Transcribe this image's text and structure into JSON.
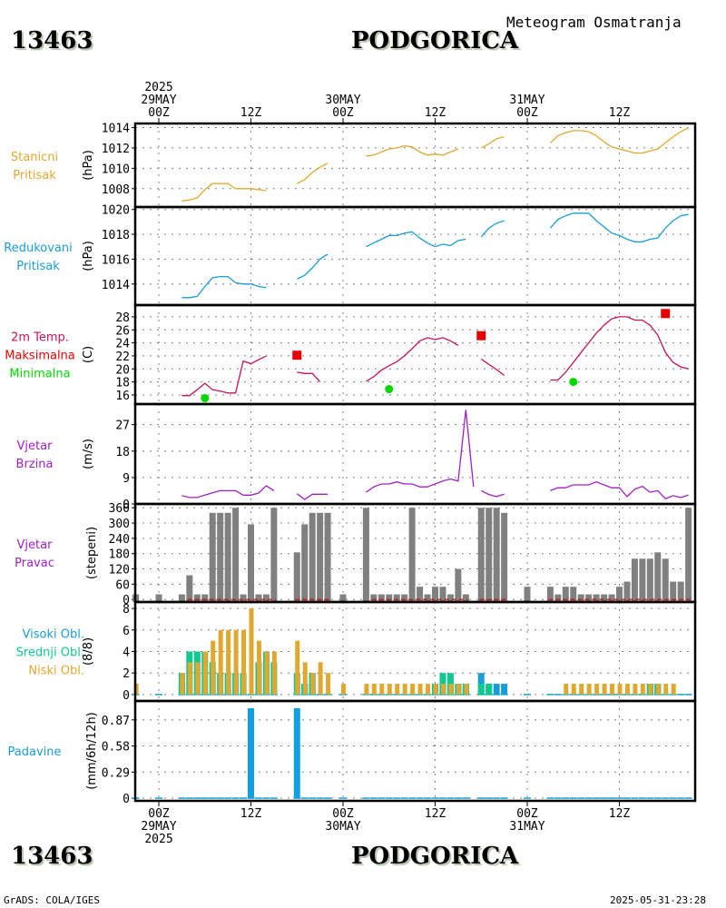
{
  "header": {
    "station_id": "13463",
    "station_name": "PODGORICA",
    "subtitle": "Meteogram Osmatranja"
  },
  "footer": {
    "station_id": "13463",
    "station_name": "PODGORICA",
    "credit": "GrADS: COLA/IGES",
    "timestamp": "2025-05-31-23:28"
  },
  "time_axis": {
    "top_labels": [
      {
        "h": 0,
        "lines": [
          "2025",
          "29MAY",
          "00Z"
        ]
      },
      {
        "h": 12,
        "lines": [
          "12Z"
        ]
      },
      {
        "h": 24,
        "lines": [
          "30MAY",
          "00Z"
        ]
      },
      {
        "h": 36,
        "lines": [
          "12Z"
        ]
      },
      {
        "h": 48,
        "lines": [
          "31MAY",
          "00Z"
        ]
      },
      {
        "h": 60,
        "lines": [
          "12Z"
        ]
      }
    ],
    "bottom_labels": [
      {
        "h": 0,
        "lines": [
          "00Z",
          "29MAY",
          "2025"
        ]
      },
      {
        "h": 12,
        "lines": [
          "12Z"
        ]
      },
      {
        "h": 24,
        "lines": [
          "00Z",
          "30MAY"
        ]
      },
      {
        "h": 36,
        "lines": [
          "12Z"
        ]
      },
      {
        "h": 48,
        "lines": [
          "00Z",
          "31MAY"
        ]
      },
      {
        "h": 60,
        "lines": [
          "12Z"
        ]
      }
    ],
    "range_hours": [
      -3,
      70
    ],
    "units": "hours since 2025-05-29 00Z"
  },
  "chart_data": [
    {
      "type": "line",
      "id": "station-pressure",
      "labels": [
        "Stanicni",
        "Pritisak"
      ],
      "label_color": "#e0a830",
      "ylabel": "(hPa)",
      "ylim": [
        1006.2,
        1014.4
      ],
      "yticks": [
        1008,
        1010,
        1012,
        1014
      ],
      "series": [
        {
          "name": "Stanicni Pritisak",
          "color": "#e0a830",
          "x": [
            3,
            4,
            5,
            6,
            7,
            8,
            9,
            10,
            11,
            12,
            13,
            14,
            15,
            null,
            18,
            19,
            20,
            21,
            22,
            null,
            27,
            28,
            29,
            30,
            31,
            32,
            33,
            34,
            35,
            36,
            37,
            38,
            39,
            40,
            null,
            42,
            43,
            44,
            45,
            null,
            51,
            52,
            53,
            54,
            55,
            56,
            57,
            58,
            59,
            60,
            61,
            62,
            63,
            64,
            65,
            66,
            67,
            68,
            69
          ],
          "y": [
            1006.8,
            1006.9,
            1007.1,
            1007.9,
            1008.5,
            1008.5,
            1008.5,
            1008.0,
            1008.0,
            1008.0,
            1007.9,
            1007.8,
            null,
            null,
            1008.5,
            1008.9,
            1009.6,
            1010.1,
            1010.5,
            null,
            1011.2,
            1011.3,
            1011.6,
            1011.9,
            1012.0,
            1012.2,
            1012.1,
            1011.6,
            1011.3,
            1011.4,
            1011.3,
            1011.6,
            1011.9,
            null,
            null,
            1012.0,
            1012.4,
            1012.9,
            1013.1,
            null,
            1012.5,
            1013.2,
            1013.5,
            1013.7,
            1013.7,
            1013.6,
            1013.2,
            1012.6,
            1012.1,
            1011.9,
            1011.7,
            1011.5,
            1011.5,
            1011.7,
            1011.9,
            1012.5,
            1013.1,
            1013.6,
            1014.0
          ]
        }
      ]
    },
    {
      "type": "line",
      "id": "reduced-pressure",
      "labels": [
        "Redukovani",
        "Pritisak"
      ],
      "label_color": "#1a9cd8",
      "ylabel": "(hPa)",
      "ylim": [
        1012.3,
        1020.2
      ],
      "yticks": [
        1014,
        1016,
        1018,
        1020
      ],
      "series": [
        {
          "name": "Redukovani Pritisak",
          "color": "#1a9cd8",
          "x": [
            3,
            4,
            5,
            6,
            7,
            8,
            9,
            10,
            11,
            12,
            13,
            14,
            15,
            null,
            18,
            19,
            20,
            21,
            22,
            null,
            27,
            28,
            29,
            30,
            31,
            32,
            33,
            34,
            35,
            36,
            37,
            38,
            39,
            40,
            null,
            42,
            43,
            44,
            45,
            null,
            51,
            52,
            53,
            54,
            55,
            56,
            57,
            58,
            59,
            60,
            61,
            62,
            63,
            64,
            65,
            66,
            67,
            68,
            69
          ],
          "y": [
            1012.9,
            1012.9,
            1013.0,
            1013.8,
            1014.5,
            1014.6,
            1014.6,
            1014.1,
            1014.0,
            1014.0,
            1013.8,
            1013.7,
            null,
            null,
            1014.4,
            1014.7,
            1015.3,
            1016.0,
            1016.4,
            null,
            1017.0,
            1017.3,
            1017.6,
            1017.9,
            1017.9,
            1018.1,
            1018.2,
            1017.7,
            1017.3,
            1017.0,
            1017.2,
            1017.1,
            1017.5,
            1017.6,
            null,
            1017.8,
            1018.5,
            1018.9,
            1019.1,
            null,
            1018.5,
            1019.2,
            1019.5,
            1019.7,
            1019.7,
            1019.7,
            1019.1,
            1018.6,
            1018.1,
            1017.9,
            1017.6,
            1017.4,
            1017.4,
            1017.6,
            1017.7,
            1018.5,
            1019.1,
            1019.5,
            1019.6
          ]
        }
      ]
    },
    {
      "type": "line",
      "id": "temperature",
      "labels": [
        "2m Temp.",
        "Maksimalna",
        "Minimalna"
      ],
      "label_colors": [
        "#d0105c",
        "#e80000",
        "#00d800"
      ],
      "ylabel": "(C)",
      "ylim": [
        14.6,
        29.8
      ],
      "yticks": [
        16,
        18,
        20,
        22,
        24,
        26,
        28
      ],
      "series": [
        {
          "name": "2m Temp.",
          "color": "#c8105c",
          "x": [
            3,
            4,
            5,
            6,
            7,
            8,
            9,
            10,
            11,
            12,
            13,
            14,
            15,
            null,
            18,
            19,
            20,
            21,
            null,
            27,
            28,
            29,
            30,
            31,
            32,
            33,
            34,
            35,
            36,
            37,
            38,
            39,
            40,
            null,
            42,
            43,
            44,
            45,
            null,
            51,
            52,
            53,
            54,
            55,
            56,
            57,
            58,
            59,
            60,
            61,
            62,
            63,
            64,
            65,
            66,
            67,
            68,
            69
          ],
          "y": [
            15.9,
            15.9,
            16.8,
            17.8,
            16.8,
            16.6,
            16.3,
            16.3,
            21.2,
            20.8,
            21.4,
            22.0,
            null,
            null,
            19.5,
            19.3,
            19.3,
            18.0,
            null,
            18.1,
            18.8,
            19.8,
            20.5,
            21.1,
            22.0,
            23.1,
            24.3,
            24.8,
            24.5,
            24.8,
            24.3,
            23.6,
            null,
            null,
            21.5,
            20.7,
            19.9,
            19.0,
            null,
            18.3,
            18.3,
            19.5,
            21.0,
            22.5,
            24.0,
            25.5,
            26.7,
            27.7,
            28.0,
            28.0,
            27.5,
            27.5,
            26.7,
            25.2,
            22.5,
            21.0,
            20.3,
            20.0
          ]
        },
        {
          "name": "Maksimalna",
          "color": "#e80000",
          "marker": "square",
          "x": [
            18,
            42,
            66
          ],
          "y": [
            22.1,
            25.1,
            28.5
          ]
        },
        {
          "name": "Minimalna",
          "color": "#00d800",
          "marker": "circle",
          "x": [
            6,
            30,
            54
          ],
          "y": [
            15.5,
            16.9,
            18.0
          ]
        }
      ]
    },
    {
      "type": "line",
      "id": "wind-speed",
      "labels": [
        "Vjetar",
        "Brzina"
      ],
      "label_color": "#a020c8",
      "ylabel": "(m/s)",
      "ylim": [
        0,
        34
      ],
      "yticks": [
        0,
        9,
        18,
        27
      ],
      "series": [
        {
          "name": "Vjetar Brzina",
          "color": "#a020c8",
          "x": [
            3,
            4,
            5,
            6,
            7,
            8,
            9,
            10,
            11,
            12,
            13,
            14,
            15,
            null,
            18,
            19,
            20,
            21,
            22,
            null,
            27,
            28,
            29,
            30,
            31,
            32,
            33,
            34,
            35,
            36,
            37,
            38,
            39,
            40,
            41,
            null,
            42,
            43,
            44,
            45,
            null,
            51,
            52,
            53,
            54,
            55,
            56,
            57,
            58,
            59,
            60,
            61,
            62,
            63,
            64,
            65,
            66,
            67,
            68,
            69
          ],
          "y": [
            2.8,
            2.2,
            2.2,
            3.0,
            3.8,
            4.5,
            4.5,
            4.5,
            3.0,
            3.0,
            3.7,
            6.2,
            4.5,
            null,
            3.5,
            1.5,
            3.3,
            3.3,
            3.3,
            null,
            4.0,
            5.8,
            6.8,
            6.8,
            7.5,
            6.8,
            6.8,
            5.8,
            5.8,
            6.8,
            7.8,
            8.5,
            7.8,
            32.0,
            5.8,
            null,
            4.5,
            3.2,
            2.5,
            3.3,
            null,
            4.5,
            5.5,
            5.5,
            6.5,
            6.5,
            6.5,
            7.5,
            6.5,
            5.5,
            5.5,
            2.5,
            5.0,
            6.0,
            4.0,
            4.5,
            1.8,
            2.8,
            2.2,
            3.0
          ]
        }
      ]
    },
    {
      "type": "bar",
      "id": "wind-direction",
      "labels": [
        "Vjetar",
        "Pravac"
      ],
      "label_color": "#a020c8",
      "ylabel": "(stepeni)",
      "ylim": [
        -10,
        375
      ],
      "yticks": [
        0,
        60,
        120,
        180,
        240,
        300,
        360
      ],
      "bar_color": "#808080",
      "calm_color": "#e00000",
      "x": [
        -3,
        0,
        3,
        4,
        5,
        6,
        7,
        8,
        9,
        10,
        11,
        12,
        13,
        14,
        15,
        18,
        19,
        20,
        21,
        22,
        24,
        27,
        28,
        29,
        30,
        31,
        32,
        33,
        34,
        35,
        36,
        37,
        38,
        39,
        40,
        42,
        43,
        44,
        45,
        48,
        51,
        52,
        53,
        54,
        55,
        56,
        57,
        58,
        59,
        60,
        61,
        62,
        63,
        64,
        65,
        66,
        67,
        68,
        69
      ],
      "values": [
        20,
        20,
        20,
        95,
        20,
        20,
        340,
        340,
        340,
        360,
        20,
        295,
        20,
        20,
        360,
        185,
        295,
        340,
        340,
        340,
        20,
        360,
        20,
        20,
        20,
        20,
        20,
        360,
        50,
        20,
        50,
        50,
        20,
        120,
        20,
        360,
        360,
        360,
        340,
        50,
        50,
        20,
        50,
        50,
        20,
        20,
        20,
        20,
        20,
        50,
        70,
        160,
        160,
        160,
        185,
        160,
        70,
        70,
        360
      ],
      "calm_spans": [
        [
          4,
          15
        ],
        [
          18,
          22
        ],
        [
          28,
          40
        ],
        [
          42,
          45
        ],
        [
          51,
          69
        ]
      ]
    },
    {
      "type": "bar",
      "id": "clouds",
      "labels": [
        "Visoki Obl.",
        "Srednji Obl.",
        "Niski Obl."
      ],
      "label_colors": [
        "#1a9cd8",
        "#10c890",
        "#e0a830"
      ],
      "ylabel": "(8/8)",
      "ylim": [
        -0.6,
        8.6
      ],
      "yticks": [
        0,
        2,
        4,
        6,
        8
      ],
      "x": [
        -3,
        0,
        3,
        4,
        5,
        6,
        7,
        8,
        9,
        10,
        11,
        12,
        13,
        14,
        15,
        18,
        19,
        20,
        21,
        22,
        24,
        27,
        28,
        29,
        30,
        31,
        32,
        33,
        34,
        35,
        36,
        37,
        38,
        39,
        40,
        42,
        43,
        44,
        45,
        48,
        51,
        52,
        53,
        54,
        55,
        56,
        57,
        58,
        59,
        60,
        61,
        62,
        63,
        64,
        65,
        66,
        67,
        68,
        69
      ],
      "series": [
        {
          "name": "Visoki Obl.",
          "color": "#1a9cd8",
          "values": [
            0,
            0,
            1,
            0,
            0,
            0,
            0,
            0,
            0,
            0,
            0,
            0,
            0,
            0,
            0,
            0,
            1,
            2,
            0,
            0,
            0,
            0,
            0,
            0,
            0,
            0,
            0,
            0,
            0,
            0,
            0,
            1,
            1,
            1,
            1,
            2,
            1,
            1,
            1,
            0,
            0,
            0,
            0,
            0,
            0,
            0,
            0,
            0,
            0,
            0,
            0,
            0,
            0,
            1,
            1,
            0,
            0,
            0,
            0
          ]
        },
        {
          "name": "Srednji Obl.",
          "color": "#10c890",
          "values": [
            0,
            0,
            2,
            4,
            4,
            4,
            3,
            2,
            2,
            2,
            2,
            0,
            3,
            4,
            3,
            2,
            1,
            2,
            0,
            0,
            0,
            0,
            0,
            0,
            0,
            0,
            0,
            0,
            0,
            0,
            1,
            2,
            2,
            1,
            1,
            1,
            1,
            0,
            0,
            0,
            0,
            0,
            0,
            0,
            0,
            0,
            0,
            0,
            0,
            0,
            0,
            0,
            0,
            1,
            1,
            0,
            0,
            0,
            0
          ]
        },
        {
          "name": "Niski Obl.",
          "color": "#e0a830",
          "values": [
            1,
            0,
            2,
            3,
            3,
            4,
            5,
            6,
            6,
            6,
            6,
            8,
            5,
            4,
            4,
            5,
            3,
            2,
            3,
            2,
            1,
            1,
            1,
            1,
            1,
            1,
            1,
            1,
            1,
            1,
            1,
            1,
            1,
            1,
            1,
            0,
            0,
            0,
            0,
            0,
            0,
            0,
            1,
            1,
            1,
            1,
            1,
            1,
            1,
            1,
            1,
            1,
            1,
            1,
            1,
            1,
            1,
            0,
            0
          ]
        }
      ]
    },
    {
      "type": "bar",
      "id": "precipitation",
      "labels": [
        "Padavine"
      ],
      "label_color": "#1a9cd8",
      "ylabel": "(mm/6h/12h)",
      "ylim": [
        -0.03,
        1.08
      ],
      "yticks": [
        0,
        0.29,
        0.58,
        0.87
      ],
      "ytick_labels": [
        "0",
        "0.29",
        "0.58",
        "0.87"
      ],
      "bar_color": "#10a0e0",
      "x": [
        12,
        18
      ],
      "values": [
        1.0,
        1.0
      ],
      "zero_marks": [
        -3,
        0,
        3,
        4,
        5,
        6,
        7,
        8,
        9,
        10,
        11,
        12,
        13,
        14,
        15,
        18,
        19,
        20,
        21,
        22,
        24,
        27,
        28,
        29,
        30,
        31,
        32,
        33,
        34,
        35,
        36,
        37,
        38,
        39,
        40,
        42,
        43,
        44,
        45,
        48,
        51,
        52,
        53,
        54,
        55,
        56,
        57,
        58,
        59,
        60,
        61,
        62,
        63,
        64,
        65,
        66,
        67,
        68,
        69
      ]
    }
  ]
}
